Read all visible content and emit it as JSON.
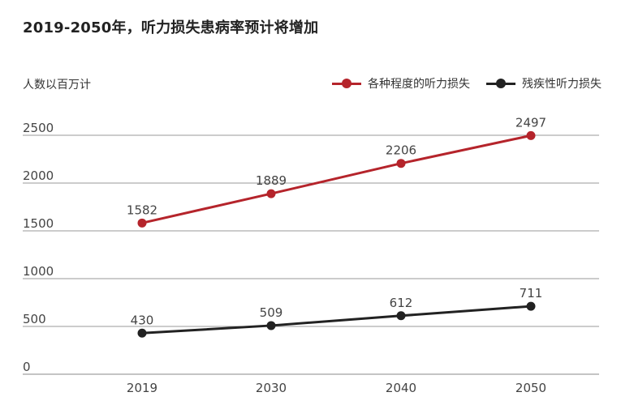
{
  "title": "2019-2050年，听力损失患病率预计将增加",
  "chart_data": {
    "type": "line",
    "title": "2019-2050年，听力损失患病率预计将增加",
    "ylabel": "人数以百万计",
    "xlabel": "",
    "categories": [
      "2019",
      "2030",
      "2040",
      "2050"
    ],
    "ylim": [
      0,
      2500
    ],
    "yticks": [
      "0",
      "500",
      "1000",
      "1500",
      "2000",
      "2500"
    ],
    "grid": true,
    "legend_position": "top-right",
    "series": [
      {
        "name": "各种程度的听力损失",
        "values": [
          1582,
          1889,
          2206,
          2497
        ],
        "labels": [
          "1582",
          "1889",
          "2206",
          "2497"
        ],
        "color": "#b5242b"
      },
      {
        "name": "残疾性听力损失",
        "values": [
          430,
          509,
          612,
          711
        ],
        "labels": [
          "430",
          "509",
          "612",
          "711"
        ],
        "color": "#222222"
      }
    ]
  }
}
